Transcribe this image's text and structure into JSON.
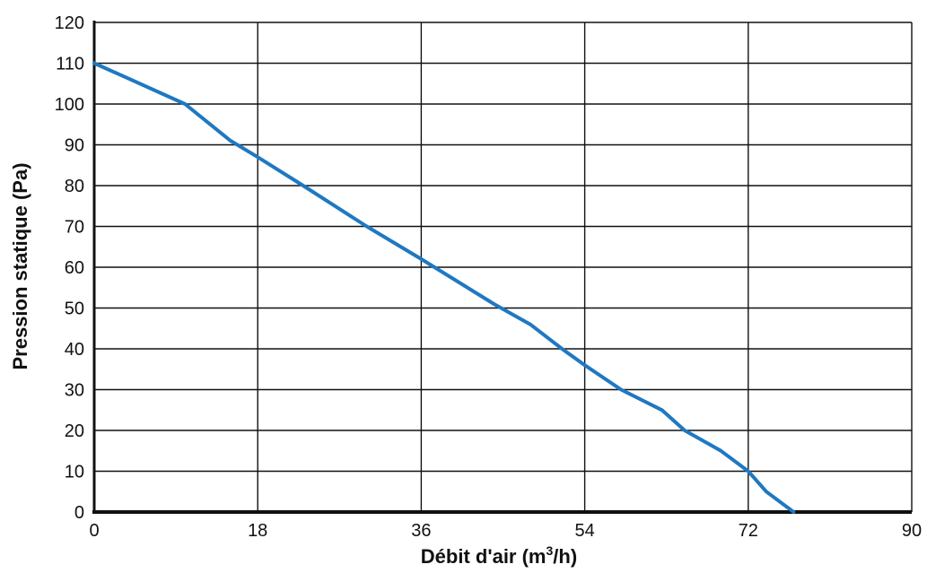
{
  "chart_data": {
    "type": "line",
    "title": "",
    "xlabel": "Débit d'air (m",
    "xlabel_superscript": "3",
    "xlabel_suffix": "/h)",
    "ylabel": "Pression statique (Pa)",
    "xlim": [
      0,
      90
    ],
    "ylim": [
      0,
      120
    ],
    "xticks": [
      0,
      18,
      36,
      54,
      72,
      90
    ],
    "yticks": [
      0,
      10,
      20,
      30,
      40,
      50,
      60,
      70,
      80,
      90,
      100,
      110,
      120
    ],
    "grid": true,
    "legend": "none",
    "series": [
      {
        "color": "#1f78c1",
        "x": [
          0,
          3,
          10,
          15,
          18,
          23,
          30,
          36,
          44,
          48,
          51.5,
          54,
          58,
          62.5,
          65,
          69,
          72,
          74,
          77
        ],
        "y": [
          110,
          107,
          100,
          91,
          87,
          80,
          70,
          62,
          51,
          46,
          40,
          36,
          30,
          25,
          20,
          15,
          10,
          5,
          0
        ]
      }
    ]
  }
}
